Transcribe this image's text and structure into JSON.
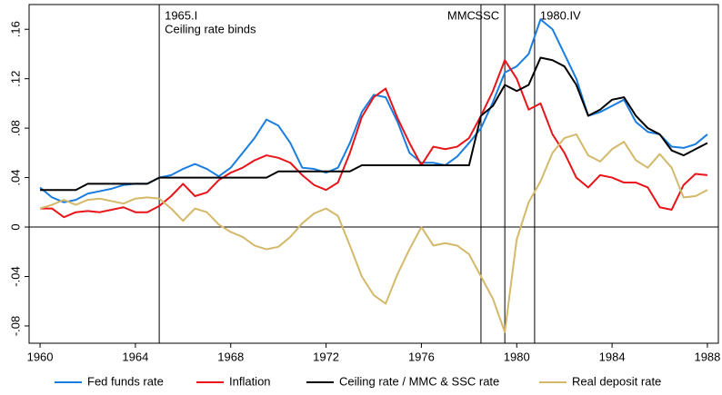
{
  "chart_data": {
    "type": "line",
    "x": [
      1960,
      1960.5,
      1961,
      1961.5,
      1962,
      1962.5,
      1963,
      1963.5,
      1964,
      1964.5,
      1965,
      1965.5,
      1966,
      1966.5,
      1967,
      1967.5,
      1968,
      1968.5,
      1969,
      1969.5,
      1970,
      1970.5,
      1971,
      1971.5,
      1972,
      1972.5,
      1973,
      1973.5,
      1974,
      1974.5,
      1975,
      1975.5,
      1976,
      1976.5,
      1977,
      1977.5,
      1978,
      1978.5,
      1979,
      1979.5,
      1980,
      1980.5,
      1981,
      1981.5,
      1982,
      1982.5,
      1983,
      1983.5,
      1984,
      1984.5,
      1985,
      1985.5,
      1986,
      1986.5,
      1987,
      1987.5,
      1988
    ],
    "series": [
      {
        "name": "Fed funds rate",
        "color": "#1a7ee0",
        "values": [
          0.032,
          0.024,
          0.02,
          0.022,
          0.027,
          0.029,
          0.031,
          0.034,
          0.035,
          0.035,
          0.04,
          0.042,
          0.047,
          0.051,
          0.047,
          0.041,
          0.048,
          0.06,
          0.072,
          0.087,
          0.082,
          0.068,
          0.048,
          0.047,
          0.044,
          0.048,
          0.068,
          0.093,
          0.107,
          0.105,
          0.085,
          0.06,
          0.052,
          0.052,
          0.05,
          0.057,
          0.068,
          0.08,
          0.101,
          0.125,
          0.13,
          0.14,
          0.168,
          0.16,
          0.14,
          0.12,
          0.09,
          0.093,
          0.098,
          0.103,
          0.085,
          0.077,
          0.075,
          0.065,
          0.064,
          0.067,
          0.075
        ]
      },
      {
        "name": "Inflation",
        "color": "#e8141a",
        "values": [
          0.015,
          0.015,
          0.008,
          0.012,
          0.013,
          0.012,
          0.014,
          0.016,
          0.012,
          0.012,
          0.017,
          0.025,
          0.035,
          0.025,
          0.028,
          0.038,
          0.044,
          0.048,
          0.054,
          0.058,
          0.056,
          0.052,
          0.042,
          0.034,
          0.03,
          0.036,
          0.06,
          0.089,
          0.105,
          0.112,
          0.088,
          0.068,
          0.05,
          0.065,
          0.063,
          0.065,
          0.072,
          0.09,
          0.11,
          0.135,
          0.12,
          0.095,
          0.1,
          0.075,
          0.06,
          0.04,
          0.032,
          0.042,
          0.04,
          0.036,
          0.036,
          0.032,
          0.016,
          0.014,
          0.034,
          0.043,
          0.042
        ]
      },
      {
        "name": "Ceiling rate / MMC & SSC rate",
        "color": "#000000",
        "values": [
          0.03,
          0.03,
          0.03,
          0.03,
          0.035,
          0.035,
          0.035,
          0.035,
          0.035,
          0.035,
          0.04,
          0.04,
          0.04,
          0.04,
          0.04,
          0.04,
          0.04,
          0.04,
          0.04,
          0.04,
          0.045,
          0.045,
          0.045,
          0.045,
          0.045,
          0.045,
          0.045,
          0.05,
          0.05,
          0.05,
          0.05,
          0.05,
          0.05,
          0.05,
          0.05,
          0.05,
          0.05,
          0.09,
          0.098,
          0.115,
          0.11,
          0.115,
          0.137,
          0.135,
          0.13,
          0.115,
          0.09,
          0.095,
          0.103,
          0.105,
          0.09,
          0.08,
          0.075,
          0.062,
          0.058,
          0.063,
          0.068
        ]
      },
      {
        "name": "Real deposit rate",
        "color": "#d4b96a",
        "values": [
          0.015,
          0.018,
          0.022,
          0.018,
          0.022,
          0.023,
          0.021,
          0.019,
          0.023,
          0.024,
          0.023,
          0.015,
          0.005,
          0.015,
          0.012,
          0.002,
          -0.004,
          -0.008,
          -0.015,
          -0.018,
          -0.016,
          -0.008,
          0.003,
          0.011,
          0.015,
          0.009,
          -0.015,
          -0.04,
          -0.055,
          -0.062,
          -0.038,
          -0.018,
          0,
          -0.015,
          -0.013,
          -0.015,
          -0.022,
          -0.04,
          -0.058,
          -0.085,
          -0.01,
          0.02,
          0.037,
          0.06,
          0.072,
          0.075,
          0.058,
          0.053,
          0.063,
          0.069,
          0.054,
          0.048,
          0.059,
          0.048,
          0.024,
          0.025,
          0.03
        ]
      }
    ],
    "xlim": [
      1959.54,
      1988.46
    ],
    "ylim": [
      -0.094,
      0.18
    ],
    "xticks": [
      1960,
      1964,
      1968,
      1972,
      1976,
      1980,
      1984,
      1988
    ],
    "yticks": [
      {
        "value": -0.08,
        "label": "-.08"
      },
      {
        "value": -0.04,
        "label": "-.04"
      },
      {
        "value": 0,
        "label": "0"
      },
      {
        "value": 0.04,
        "label": ".04"
      },
      {
        "value": 0.08,
        "label": ".08"
      },
      {
        "value": 0.12,
        "label": ".12"
      },
      {
        "value": 0.16,
        "label": ".16"
      }
    ],
    "reference_line": 0,
    "annotations": [
      {
        "x": 1965,
        "lines": [
          "1965.I",
          "Ceiling rate binds"
        ],
        "side": "right"
      },
      {
        "x": 1978.5,
        "lines": [
          "MMC"
        ],
        "side": "left"
      },
      {
        "x": 1979.5,
        "lines": [
          "SSC"
        ],
        "side": "left"
      },
      {
        "x": 1980.75,
        "lines": [
          "1980.IV"
        ],
        "side": "right"
      }
    ],
    "legend": "bottom"
  }
}
